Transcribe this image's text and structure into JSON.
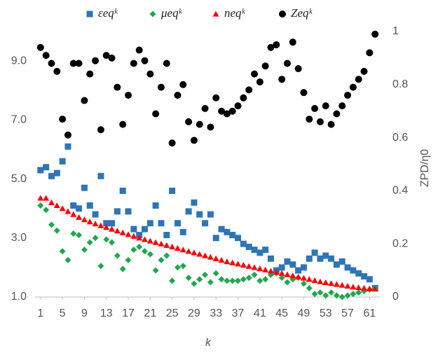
{
  "chart_data": {
    "type": "scatter",
    "xlabel": "k",
    "y2label": "ZPD/η0",
    "x": [
      1,
      2,
      3,
      4,
      5,
      6,
      7,
      8,
      9,
      10,
      11,
      12,
      13,
      14,
      15,
      16,
      17,
      18,
      19,
      20,
      21,
      22,
      23,
      24,
      25,
      26,
      27,
      28,
      29,
      30,
      31,
      32,
      33,
      34,
      35,
      36,
      37,
      38,
      39,
      40,
      41,
      42,
      43,
      44,
      45,
      46,
      47,
      48,
      49,
      50,
      51,
      52,
      53,
      54,
      55,
      56,
      57,
      58,
      59,
      60,
      61,
      62
    ],
    "xlim": [
      0,
      63
    ],
    "xticks": [
      1,
      5,
      9,
      13,
      17,
      21,
      25,
      29,
      33,
      37,
      41,
      45,
      49,
      53,
      57,
      61
    ],
    "ylim": [
      1,
      10
    ],
    "yticks": [
      {
        "value": 1,
        "label": "1.0"
      },
      {
        "value": 3,
        "label": "3.0"
      },
      {
        "value": 5,
        "label": "5.0"
      },
      {
        "value": 7,
        "label": "7.0"
      },
      {
        "value": 9,
        "label": "9.0"
      }
    ],
    "y2lim": [
      0,
      1
    ],
    "y2ticks": [
      0,
      0.2,
      0.4,
      0.6,
      0.8,
      1
    ],
    "grid": false,
    "series": [
      {
        "name": "εeqᵏ",
        "color": "#2e75b6",
        "marker": "square",
        "values": [
          5.3,
          5.4,
          5.1,
          5.2,
          5.6,
          6.1,
          4.1,
          4.0,
          4.7,
          4.1,
          3.8,
          5.1,
          3.5,
          3.5,
          3.9,
          4.6,
          3.9,
          3.3,
          3.1,
          3.3,
          3.5,
          4.1,
          3.5,
          3.1,
          4.6,
          3.5,
          3.2,
          3.9,
          4.2,
          3.8,
          3.5,
          3.8,
          3.0,
          3.3,
          3.2,
          3.1,
          3.0,
          2.8,
          2.7,
          2.6,
          2.5,
          2.6,
          2.3,
          1.9,
          2.0,
          2.2,
          2.1,
          1.9,
          2.0,
          2.3,
          2.5,
          2.3,
          2.4,
          2.3,
          2.1,
          2.2,
          2.0,
          1.9,
          1.8,
          1.7,
          1.6,
          1.3
        ]
      },
      {
        "name": "μeqᵏ",
        "color": "#1fa84f",
        "marker": "diamond",
        "values": [
          4.1,
          3.95,
          3.45,
          3.25,
          2.55,
          2.25,
          3.15,
          3.1,
          2.6,
          2.85,
          3.0,
          2.05,
          2.95,
          2.85,
          2.4,
          1.95,
          2.25,
          2.6,
          2.7,
          2.55,
          2.45,
          1.9,
          2.25,
          2.4,
          1.55,
          2.0,
          2.05,
          1.65,
          1.45,
          1.6,
          1.75,
          1.5,
          1.8,
          1.6,
          1.55,
          1.55,
          1.55,
          1.6,
          1.65,
          1.75,
          1.55,
          1.6,
          1.75,
          1.8,
          1.65,
          1.5,
          1.6,
          1.65,
          1.45,
          1.3,
          1.1,
          1.15,
          1.05,
          1.15,
          1.05,
          1.0,
          1.05,
          1.1,
          1.15,
          1.2,
          1.25,
          1.3
        ]
      },
      {
        "name": "neqᵏ",
        "color": "#ff0000",
        "marker": "triangle",
        "values": [
          4.35,
          4.35,
          4.2,
          4.1,
          4.0,
          3.9,
          3.8,
          3.7,
          3.62,
          3.55,
          3.48,
          3.42,
          3.36,
          3.3,
          3.24,
          3.18,
          3.12,
          3.06,
          3.0,
          2.95,
          2.9,
          2.85,
          2.8,
          2.75,
          2.7,
          2.65,
          2.6,
          2.55,
          2.5,
          2.45,
          2.4,
          2.35,
          2.3,
          2.25,
          2.2,
          2.16,
          2.12,
          2.08,
          2.04,
          2.0,
          1.96,
          1.92,
          1.88,
          1.84,
          1.8,
          1.76,
          1.72,
          1.68,
          1.64,
          1.6,
          1.56,
          1.52,
          1.49,
          1.46,
          1.43,
          1.4,
          1.37,
          1.34,
          1.32,
          1.3,
          1.28,
          1.27
        ]
      },
      {
        "name": "Zeqᵏ",
        "color": "#000000",
        "marker": "circle",
        "axis": "y2",
        "values": [
          0.94,
          0.91,
          0.88,
          0.85,
          0.67,
          0.61,
          0.88,
          0.88,
          0.74,
          0.84,
          0.89,
          0.63,
          0.91,
          0.9,
          0.79,
          0.65,
          0.76,
          0.88,
          0.93,
          0.89,
          0.84,
          0.69,
          0.79,
          0.88,
          0.58,
          0.76,
          0.8,
          0.66,
          0.59,
          0.65,
          0.71,
          0.64,
          0.75,
          0.7,
          0.69,
          0.7,
          0.72,
          0.75,
          0.78,
          0.84,
          0.81,
          0.87,
          0.94,
          0.95,
          0.82,
          0.88,
          0.96,
          0.86,
          0.77,
          0.67,
          0.71,
          0.66,
          0.72,
          0.65,
          0.69,
          0.72,
          0.76,
          0.79,
          0.82,
          0.85,
          0.92,
          0.99
        ]
      }
    ]
  }
}
